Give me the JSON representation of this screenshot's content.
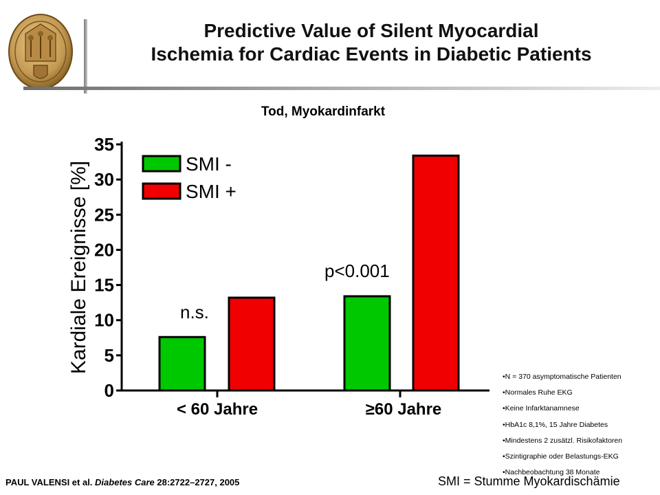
{
  "header": {
    "title_line1": "Predictive Value of Silent Myocardial",
    "title_line2": "Ischemia for Cardiac Events in Diabetic Patients"
  },
  "chart_data": {
    "type": "bar",
    "title": "Tod, Myokardinfarkt",
    "ylabel": "Kardiale Ereignisse [%]",
    "xlabel": "",
    "ylim": [
      0,
      35
    ],
    "yticks": [
      "0",
      "5",
      "10",
      "15",
      "20",
      "25",
      "30",
      "35"
    ],
    "categories": [
      "< 60 Jahre",
      "≥60 Jahre"
    ],
    "series": [
      {
        "name": "SMI -",
        "color": "#00c800",
        "values": [
          7.6,
          13.4
        ]
      },
      {
        "name": "SMI +",
        "color": "#f00000",
        "values": [
          13.2,
          33.4
        ]
      }
    ],
    "annotations": [
      "n.s.",
      "p<0.001"
    ],
    "legend_position": "top-left",
    "grid": false
  },
  "notes": [
    "•N = 370 asymptomatische Patienten",
    "•Normales Ruhe EKG",
    "•Keine Infarktanamnese",
    "•HbA1c 8,1%, 15 Jahre Diabetes",
    "•Mindestens 2 zusätzl. Risikofaktoren",
    "•Szintigraphie oder Belastungs-EKG",
    "•Nachbeobachtung 38 Monate"
  ],
  "footer": {
    "citation_authors": "PAUL VALENSI et al.",
    "citation_journal": "Diabetes Care",
    "citation_ref": "28:2722–2727, 2005",
    "smi_definition": "SMI = Stumme Myokardischämie"
  }
}
